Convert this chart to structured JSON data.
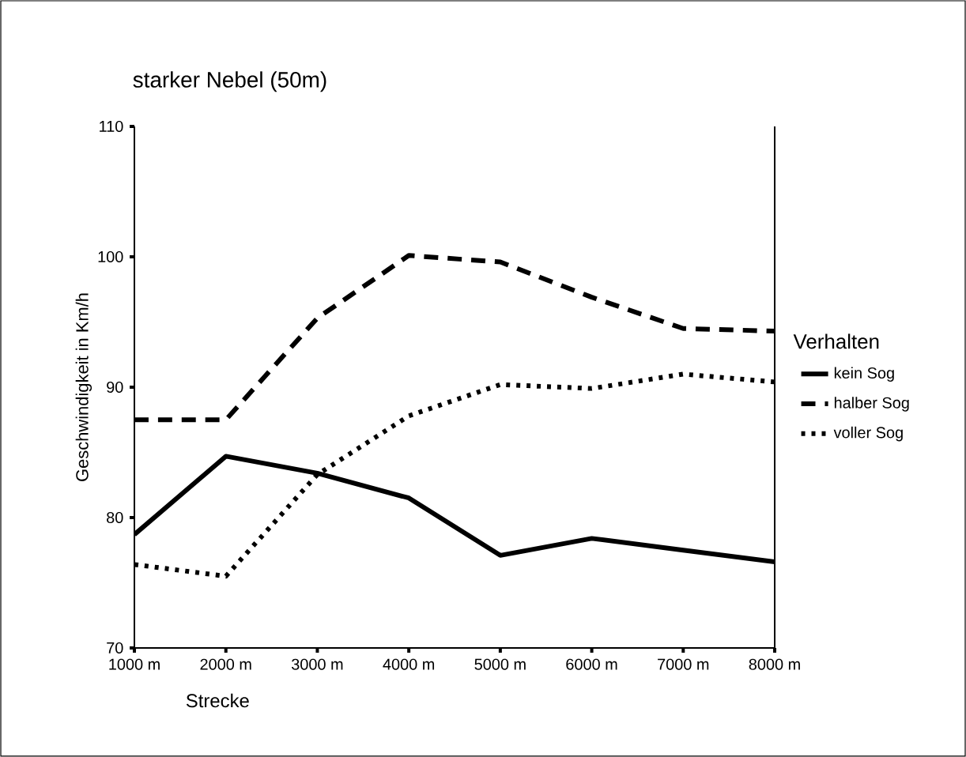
{
  "chart_data": {
    "type": "line",
    "title": "starker Nebel (50m)",
    "xlabel": "Strecke",
    "ylabel": "Geschwindigkeit in Km/h",
    "legend_title": "Verhalten",
    "legend": "right",
    "categories": [
      "1000 m",
      "2000 m",
      "3000 m",
      "4000 m",
      "5000 m",
      "6000 m",
      "7000 m",
      "8000 m"
    ],
    "ylim": [
      70,
      110
    ],
    "yticks": [
      70,
      80,
      90,
      100,
      110
    ],
    "grid": false,
    "marker": "none",
    "series": [
      {
        "name": "kein Sog",
        "color": "#000000",
        "line_style": "solid",
        "values": [
          78.7,
          84.7,
          83.4,
          81.5,
          77.1,
          78.4,
          77.5,
          76.6
        ]
      },
      {
        "name": "halber Sog",
        "color": "#000000",
        "line_style": "dashed",
        "values": [
          87.5,
          87.5,
          95.3,
          100.1,
          99.6,
          96.9,
          94.5,
          94.3
        ]
      },
      {
        "name": "voller Sog",
        "color": "#000000",
        "line_style": "dotted",
        "values": [
          76.4,
          75.5,
          83.3,
          87.8,
          90.2,
          89.9,
          91.0,
          90.4
        ]
      }
    ]
  }
}
